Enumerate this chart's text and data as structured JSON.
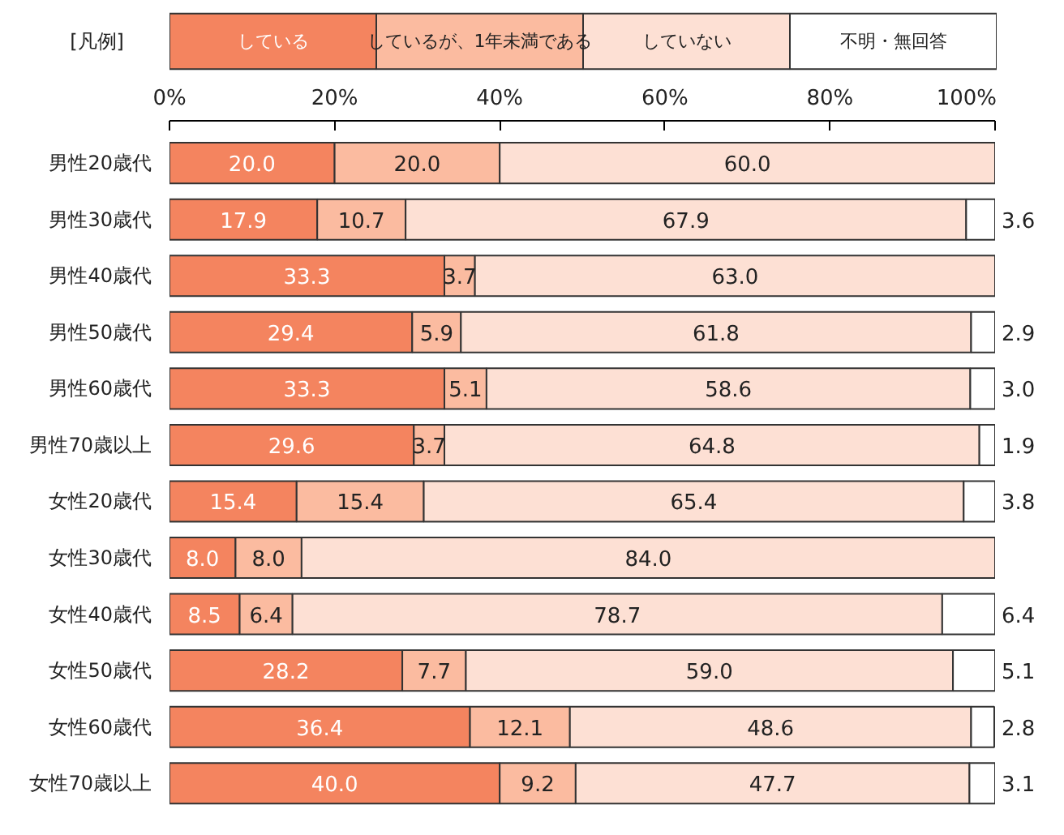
{
  "chart_data": {
    "type": "bar",
    "orientation": "horizontal",
    "stacked": true,
    "legend": "top",
    "legend_title": "[凡例]",
    "categories": [
      "男性20歳代",
      "男性30歳代",
      "男性40歳代",
      "男性50歳代",
      "男性60歳代",
      "男性70歳以上",
      "女性20歳代",
      "女性30歳代",
      "女性40歳代",
      "女性50歳代",
      "女性60歳代",
      "女性70歳以上"
    ],
    "xlim": [
      0,
      100
    ],
    "xticks": [
      {
        "value": 0,
        "label": "0%"
      },
      {
        "value": 20,
        "label": "20%"
      },
      {
        "value": 40,
        "label": "40%"
      },
      {
        "value": 60,
        "label": "60%"
      },
      {
        "value": 80,
        "label": "80%"
      },
      {
        "value": 100,
        "label": "100%"
      }
    ],
    "grid": false,
    "series": [
      {
        "name": "している",
        "color": "#f4845f",
        "values": [
          20.0,
          17.9,
          33.3,
          29.4,
          33.3,
          29.6,
          15.4,
          8.0,
          8.5,
          28.2,
          36.4,
          40.0
        ],
        "value_labels": [
          "20.0",
          "17.9",
          "33.3",
          "29.4",
          "33.3",
          "29.6",
          "15.4",
          "8.0",
          "8.5",
          "28.2",
          "36.4",
          "40.0"
        ]
      },
      {
        "name": "しているが、1年未満である",
        "color": "#fbbba0",
        "values": [
          20.0,
          10.7,
          3.7,
          5.9,
          5.1,
          3.7,
          15.4,
          8.0,
          6.4,
          7.7,
          12.1,
          9.2
        ],
        "value_labels": [
          "20.0",
          "10.7",
          "3.7",
          "5.9",
          "5.1",
          "3.7",
          "15.4",
          "8.0",
          "6.4",
          "7.7",
          "12.1",
          "9.2"
        ]
      },
      {
        "name": "していない",
        "color": "#fde0d4",
        "values": [
          60.0,
          67.9,
          63.0,
          61.8,
          58.6,
          64.8,
          65.4,
          84.0,
          78.7,
          59.0,
          48.6,
          47.7
        ],
        "value_labels": [
          "60.0",
          "67.9",
          "63.0",
          "61.8",
          "58.6",
          "64.8",
          "65.4",
          "84.0",
          "78.7",
          "59.0",
          "48.6",
          "47.7"
        ]
      },
      {
        "name": "不明・無回答",
        "color": "#ffffff",
        "values": [
          null,
          3.6,
          null,
          2.9,
          3.0,
          1.9,
          3.8,
          null,
          6.4,
          5.1,
          2.8,
          3.1
        ],
        "value_labels": [
          null,
          "3.6",
          null,
          "2.9",
          "3.0",
          "1.9",
          "3.8",
          null,
          "6.4",
          "5.1",
          "2.8",
          "3.1"
        ]
      }
    ]
  }
}
